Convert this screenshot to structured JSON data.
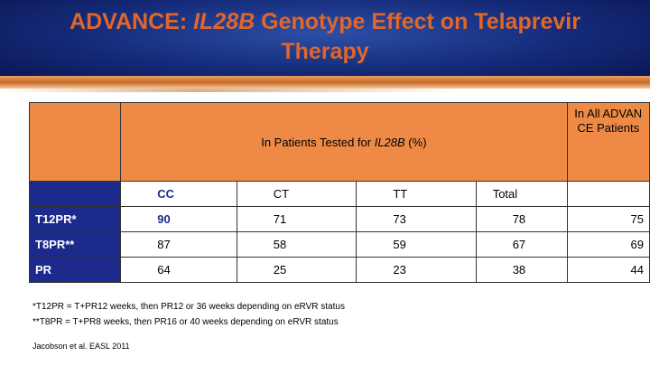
{
  "title": {
    "prefix": "ADVANCE: ",
    "italic": "IL28B",
    "suffix": " Genotype Effect on Telaprevir Therapy"
  },
  "table": {
    "group_header": {
      "prefix": "In Patients Tested for ",
      "italic": "IL28B",
      "suffix": " (%)"
    },
    "all_header": "In All ADVANCE Patients",
    "columns": [
      "CC",
      "CT",
      "TT",
      "Total"
    ],
    "rows": [
      {
        "label": "T12PR*",
        "values": [
          90,
          71,
          73,
          78,
          75
        ]
      },
      {
        "label": "T8PR**",
        "values": [
          87,
          58,
          59,
          67,
          69
        ]
      },
      {
        "label": "PR",
        "values": [
          64,
          25,
          23,
          38,
          44
        ]
      }
    ]
  },
  "footnotes": [
    "*T12PR = T+PR12 weeks, then PR12 or 36 weeks depending on eRVR status",
    "**T8PR = T+PR8 weeks, then PR16 or 40 weeks depending on eRVR status"
  ],
  "citation": "Jacobson et al.  EASL 2011"
}
